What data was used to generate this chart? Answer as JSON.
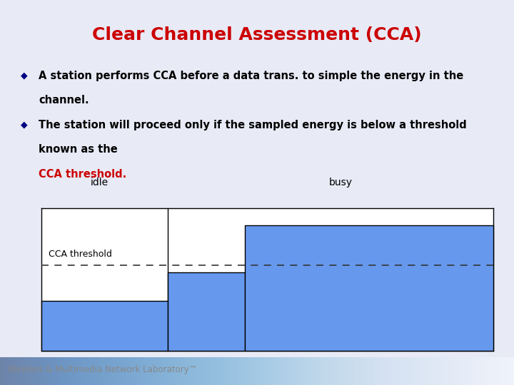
{
  "title": "Clear Channel Assessment (CCA)",
  "title_color": "#CC0000",
  "title_fontsize": 18,
  "bg_color": "#E8EAF6",
  "header_bg": "#B0B8E0",
  "bullet1_line1": "A station performs CCA before a data trans. to simple the energy in the",
  "bullet1_line2": "channel.",
  "bullet2_line1": "The station will proceed only if the sampled energy is below a threshold",
  "bullet2_line2": "known as the",
  "bullet2_line3_red": "CCA threshold.",
  "bullet_color": "#000080",
  "text_color": "#000000",
  "footer_text": "Wireless & Multimedia Network Laboratory™",
  "footer_color": "#888888",
  "bar_color": "#6699EE",
  "bar_outline": "#000000",
  "dashed_line_color": "#333333",
  "idle_label": "idle",
  "busy_label": "busy",
  "cca_label": "CCA threshold"
}
